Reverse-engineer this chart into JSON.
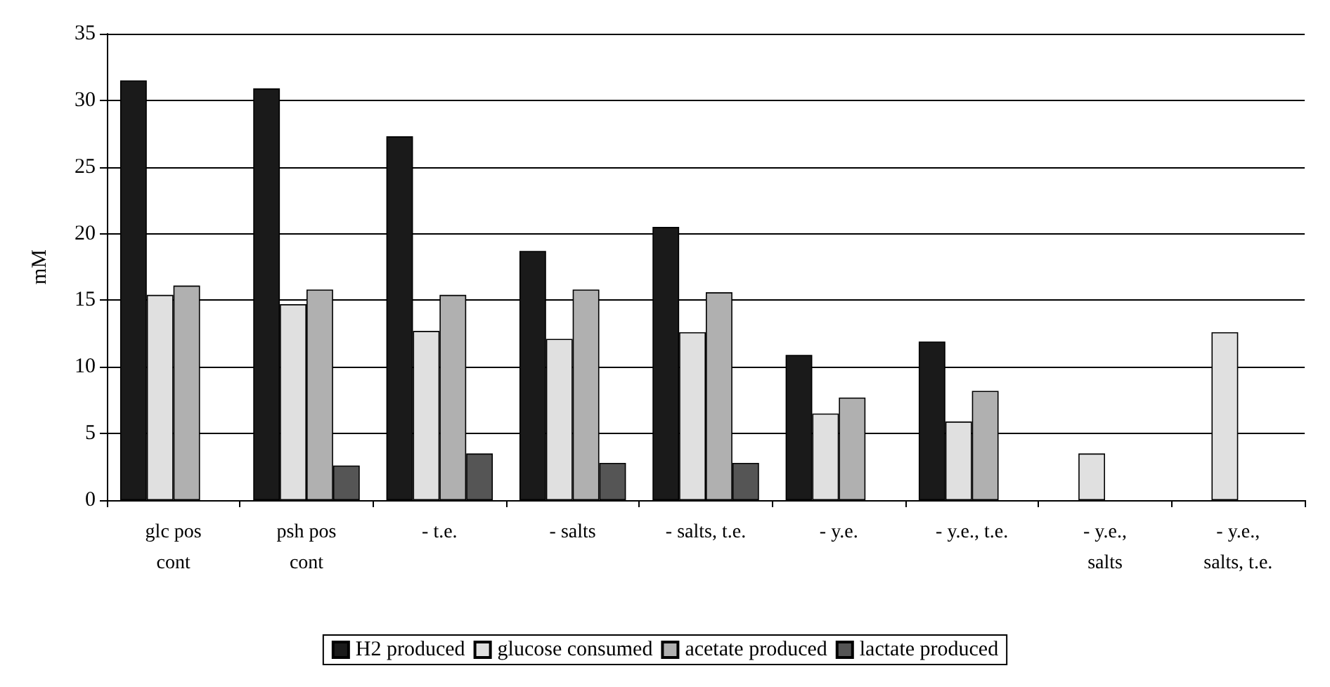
{
  "chart_data": {
    "type": "bar",
    "ylabel": "mM",
    "categories": [
      "glc pos\ncont",
      "psh pos\ncont",
      "- t.e.",
      "- salts",
      "- salts, t.e.",
      "- y.e.",
      "- y.e., t.e.",
      "- y.e.,\nsalts",
      "- y.e.,\nsalts, t.e."
    ],
    "series": [
      {
        "name": "H2 produced",
        "color": "#1a1a1a",
        "values": [
          31.5,
          30.9,
          27.3,
          18.7,
          20.5,
          10.9,
          11.9,
          null,
          null
        ]
      },
      {
        "name": "glucose consumed",
        "color": "#e0e0e0",
        "values": [
          15.4,
          14.7,
          12.7,
          12.1,
          12.6,
          6.5,
          5.9,
          3.5,
          12.6
        ]
      },
      {
        "name": "acetate produced",
        "color": "#b0b0b0",
        "values": [
          16.1,
          15.8,
          15.4,
          15.8,
          15.6,
          7.7,
          8.2,
          null,
          null
        ]
      },
      {
        "name": "lactate produced",
        "color": "#555555",
        "values": [
          null,
          2.6,
          3.5,
          2.8,
          2.8,
          null,
          null,
          null,
          null
        ]
      }
    ],
    "ylim": [
      0,
      35
    ],
    "yticks": [
      0,
      5,
      10,
      15,
      20,
      25,
      30,
      35
    ],
    "grid": "y",
    "legend": "bottom"
  }
}
